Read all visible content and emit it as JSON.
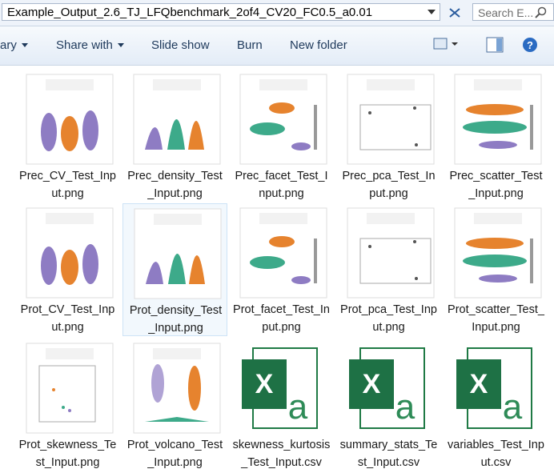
{
  "address": "Example_Output_2.6_TJ_LFQbenchmark_2of4_CV20_FC0.5_a0.01",
  "search": "Search E...",
  "toolbar": [
    "ary",
    "Share with",
    "Slide show",
    "Burn",
    "New folder"
  ],
  "files": [
    "Prec_CV_Test_Input.png",
    "Prec_density_Test_Input.png",
    "Prec_facet_Test_Input.png",
    "Prec_pca_Test_Input.png",
    "Prec_scatter_Test_Input.png",
    "Prot_CV_Test_Input.png",
    "Prot_density_Test_Input.png",
    "Prot_facet_Test_Input.png",
    "Prot_pca_Test_Input.png",
    "Prot_scatter_Test_Input.png",
    "Prot_skewness_Test_Input.png",
    "Prot_volcano_Test_Input.png",
    "skewness_kurtosis_Test_Input.csv",
    "summary_stats_Test_Input.csv",
    "variables_Test_Input.csv"
  ]
}
